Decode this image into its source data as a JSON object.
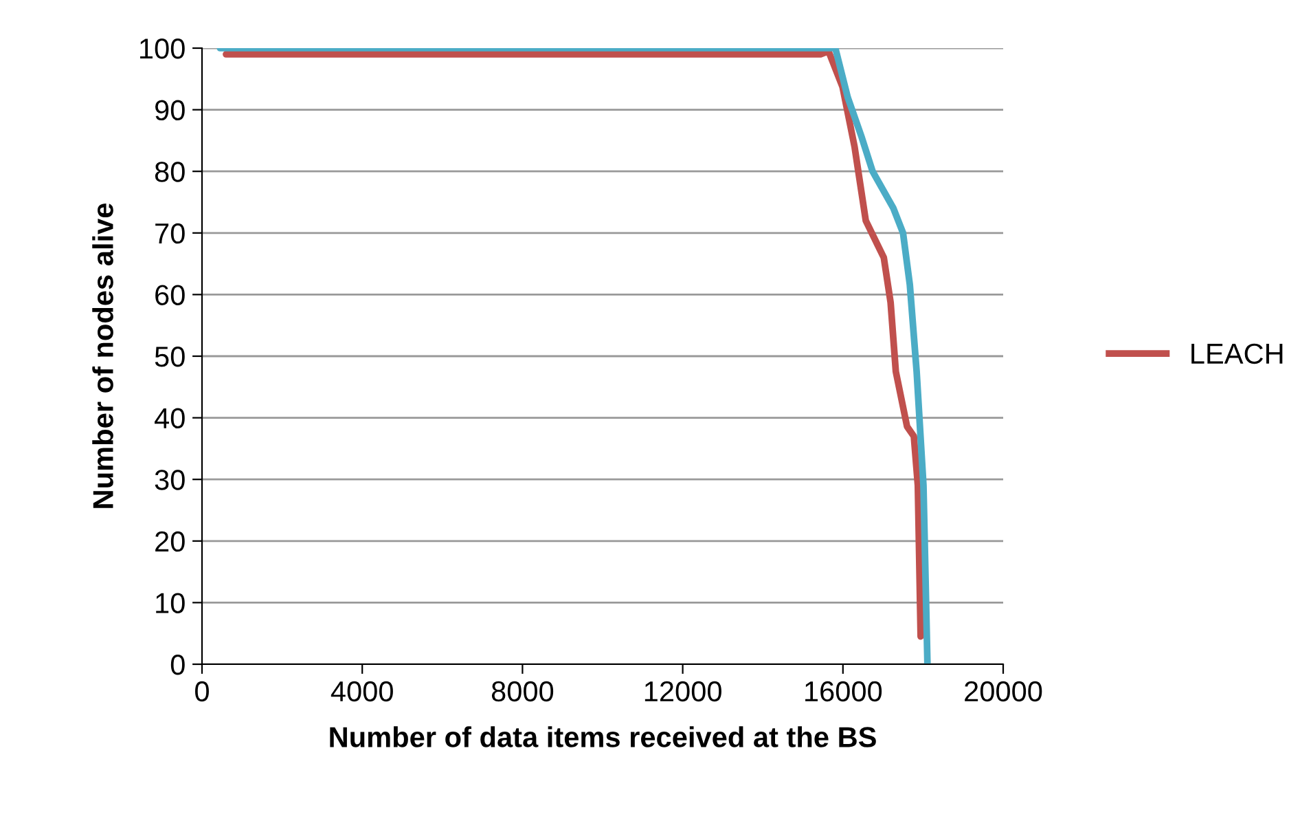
{
  "chart_data": {
    "type": "line",
    "xlabel": "Number of data items received at the BS",
    "ylabel": "Number of nodes alive",
    "xlim": [
      0,
      20000
    ],
    "xticks": [
      0,
      4000,
      8000,
      12000,
      16000,
      20000
    ],
    "ylim": [
      0,
      100
    ],
    "yticks": [
      0,
      10,
      20,
      30,
      40,
      50,
      60,
      70,
      80,
      90,
      100
    ],
    "grid": "y",
    "legend": "right",
    "line_style": "solid",
    "series": [
      {
        "name": "LEACH",
        "color": "#c0504d",
        "x": [
          600,
          15440,
          15640,
          15990,
          16290,
          16570,
          17020,
          17190,
          17320,
          17600,
          17770,
          17870,
          17940
        ],
        "values": [
          99,
          99,
          99.5,
          93.7,
          84,
          72,
          66,
          58.7,
          47.5,
          38.6,
          37,
          29,
          4.5
        ]
      },
      {
        "color": "#4bacc6",
        "x": [
          450,
          15810,
          16120,
          16470,
          16740,
          17260,
          17500,
          17670,
          17840,
          18010,
          18110
        ],
        "values": [
          100,
          100,
          92,
          85.5,
          80,
          74,
          70,
          61.6,
          47.5,
          29,
          0
        ]
      }
    ]
  }
}
